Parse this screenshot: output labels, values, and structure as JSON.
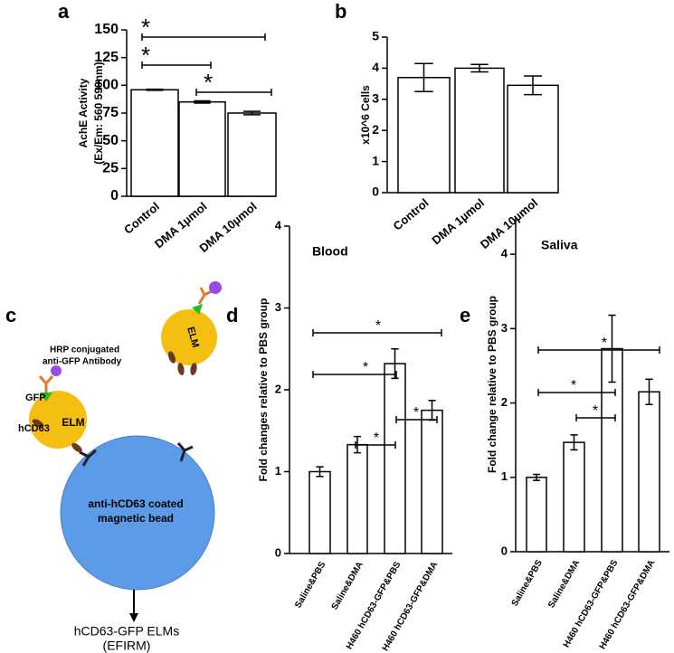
{
  "panels": [
    "a",
    "b",
    "c",
    "d",
    "e"
  ],
  "chart_data": [
    {
      "type": "bar",
      "y_label": [
        "AchE Activity",
        "(Ex/Em: 560 590nm)"
      ],
      "categories": [
        "Control",
        "DMA 1µmol",
        "DMA 10µmol"
      ],
      "values": [
        96,
        85,
        75
      ],
      "errors": [
        0.5,
        1,
        1.5
      ],
      "color": "#ffffff",
      "ylim": [
        0,
        150
      ],
      "yticks": [
        0,
        25,
        50,
        75,
        100,
        125,
        150
      ],
      "annotations": [
        "*",
        "*",
        "*"
      ]
    },
    {
      "type": "bar",
      "y_label": [
        "x10^6 Cells"
      ],
      "categories": [
        "Control",
        "DMA 1µmol",
        "DMA 10µmol"
      ],
      "values": [
        3.7,
        4.0,
        3.45
      ],
      "errors": [
        0.45,
        0.12,
        0.3
      ],
      "color": "#ffffff",
      "ylim": [
        0,
        5
      ],
      "yticks": [
        0,
        1,
        2,
        3,
        4,
        5
      ],
      "annotations": []
    },
    {
      "type": "bar",
      "title": "Blood",
      "y_label": [
        "Fold changes relative to PBS group"
      ],
      "categories": [
        "Saline&PBS",
        "Saline&DMA",
        "H460 hCD63-GFP&PBS",
        "H460 hCD63-GFP&DMA"
      ],
      "values": [
        1.0,
        1.33,
        2.32,
        1.75
      ],
      "errors": [
        0.06,
        0.1,
        0.18,
        0.12
      ],
      "color": "#ffffff",
      "ylim": [
        0,
        4
      ],
      "yticks": [
        0,
        1,
        2,
        3,
        4
      ],
      "annotations": [
        "*",
        "*",
        "*",
        "*"
      ]
    },
    {
      "type": "bar",
      "title": "Saliva",
      "y_label": [
        "Fold change relative to PBS group"
      ],
      "categories": [
        "Saline&PBS",
        "Saline&DMA",
        "H460 hCD63-GFP&PBS",
        "H460 hCD63-GFP&DMA"
      ],
      "values": [
        1.0,
        1.47,
        2.73,
        2.15
      ],
      "errors": [
        0.04,
        0.1,
        0.45,
        0.17
      ],
      "color": "#ffffff",
      "ylim": [
        0,
        4.5
      ],
      "yticks": [
        0,
        1,
        2,
        3,
        4
      ],
      "annotations": [
        "*",
        "*",
        "*"
      ]
    }
  ],
  "diagram": {
    "antibody_label": [
      "HRP conjugated",
      "anti-GFP Antibody"
    ],
    "gfp_label": "GFP",
    "hcd63_label": "hCD63",
    "elm_labels": [
      "ELM",
      "ELM"
    ],
    "bead_label": [
      "anti-hCD63 coated",
      "magnetic bead"
    ],
    "output_label": [
      "hCD63-GFP ELMs",
      "(EFIRM)"
    ]
  }
}
